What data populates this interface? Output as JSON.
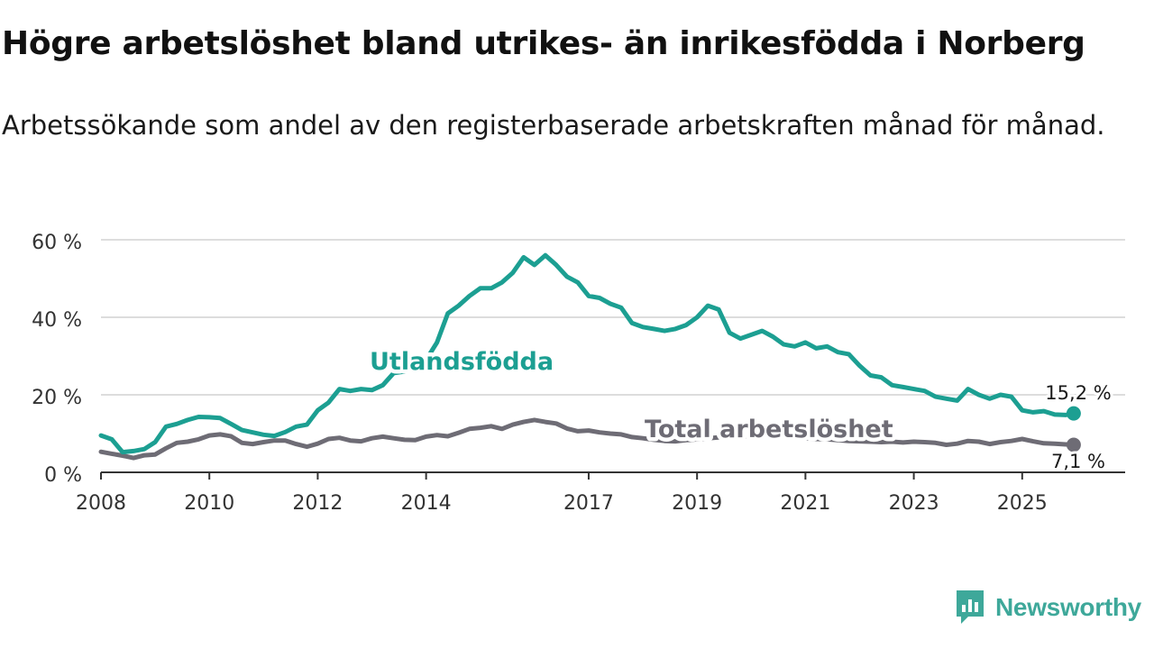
{
  "header": {
    "title": "Högre arbetslöshet bland utrikes- än inrikesfödda i Norberg",
    "subtitle": "Arbetssökande som andel av den registerbaserade arbetskraften månad för månad."
  },
  "brand": {
    "name": "Newsworthy",
    "icon": "newsworthy-logo-icon",
    "color": "#3ea89a"
  },
  "chart_data": {
    "type": "line",
    "title": "Högre arbetslöshet bland utrikes- än inrikesfödda i Norberg",
    "subtitle": "Arbetssökande som andel av den registerbaserade arbetskraften månad för månad.",
    "xlabel": "",
    "ylabel": "",
    "ylim": [
      0,
      60
    ],
    "xlim": [
      2008,
      2026.9
    ],
    "grid": true,
    "y_ticks": [
      {
        "value": 0,
        "label": "0 %"
      },
      {
        "value": 20,
        "label": "20 %"
      },
      {
        "value": 40,
        "label": "40 %"
      },
      {
        "value": 60,
        "label": "60 %"
      }
    ],
    "x_ticks": [
      {
        "value": 2008,
        "label": "2008"
      },
      {
        "value": 2010,
        "label": "2010"
      },
      {
        "value": 2012,
        "label": "2012"
      },
      {
        "value": 2014,
        "label": "2014"
      },
      {
        "value": 2017,
        "label": "2017"
      },
      {
        "value": 2019,
        "label": "2019"
      },
      {
        "value": 2021,
        "label": "2021"
      },
      {
        "value": 2023,
        "label": "2023"
      },
      {
        "value": 2025,
        "label": "2025"
      }
    ],
    "series": [
      {
        "name": "Total arbetslöshet",
        "label": "Total arbetslöshet",
        "color": "#6e6c75",
        "end_label": "7,1 %",
        "points": [
          [
            2008.0,
            5.3
          ],
          [
            2008.2,
            4.8
          ],
          [
            2008.4,
            4.3
          ],
          [
            2008.6,
            3.7
          ],
          [
            2008.8,
            4.4
          ],
          [
            2009.0,
            4.6
          ],
          [
            2009.2,
            6.2
          ],
          [
            2009.4,
            7.6
          ],
          [
            2009.6,
            7.9
          ],
          [
            2009.8,
            8.5
          ],
          [
            2010.0,
            9.5
          ],
          [
            2010.2,
            9.8
          ],
          [
            2010.4,
            9.3
          ],
          [
            2010.6,
            7.6
          ],
          [
            2010.8,
            7.3
          ],
          [
            2011.0,
            7.8
          ],
          [
            2011.2,
            8.2
          ],
          [
            2011.4,
            8.2
          ],
          [
            2011.6,
            7.3
          ],
          [
            2011.8,
            6.6
          ],
          [
            2012.0,
            7.4
          ],
          [
            2012.2,
            8.6
          ],
          [
            2012.4,
            8.9
          ],
          [
            2012.6,
            8.2
          ],
          [
            2012.8,
            8.0
          ],
          [
            2013.0,
            8.8
          ],
          [
            2013.2,
            9.2
          ],
          [
            2013.4,
            8.8
          ],
          [
            2013.6,
            8.4
          ],
          [
            2013.8,
            8.3
          ],
          [
            2014.0,
            9.2
          ],
          [
            2014.2,
            9.6
          ],
          [
            2014.4,
            9.3
          ],
          [
            2014.6,
            10.2
          ],
          [
            2014.8,
            11.2
          ],
          [
            2015.0,
            11.5
          ],
          [
            2015.2,
            11.9
          ],
          [
            2015.4,
            11.2
          ],
          [
            2015.6,
            12.3
          ],
          [
            2015.8,
            13.0
          ],
          [
            2016.0,
            13.5
          ],
          [
            2016.2,
            13.0
          ],
          [
            2016.4,
            12.6
          ],
          [
            2016.6,
            11.3
          ],
          [
            2016.8,
            10.6
          ],
          [
            2017.0,
            10.8
          ],
          [
            2017.2,
            10.3
          ],
          [
            2017.4,
            10.0
          ],
          [
            2017.6,
            9.8
          ],
          [
            2017.8,
            9.1
          ],
          [
            2018.0,
            8.8
          ],
          [
            2018.2,
            8.4
          ],
          [
            2018.4,
            8.1
          ],
          [
            2018.6,
            8.0
          ],
          [
            2018.8,
            8.3
          ],
          [
            2019.0,
            8.5
          ],
          [
            2019.2,
            8.8
          ],
          [
            2019.4,
            9.0
          ],
          [
            2019.6,
            9.1
          ],
          [
            2019.8,
            9.0
          ],
          [
            2020.0,
            9.5
          ],
          [
            2020.2,
            9.8
          ],
          [
            2020.4,
            9.6
          ],
          [
            2020.6,
            9.3
          ],
          [
            2020.8,
            9.0
          ],
          [
            2021.0,
            8.8
          ],
          [
            2021.2,
            8.6
          ],
          [
            2021.4,
            8.5
          ],
          [
            2021.6,
            8.3
          ],
          [
            2021.8,
            8.1
          ],
          [
            2022.0,
            8.0
          ],
          [
            2022.2,
            7.9
          ],
          [
            2022.4,
            7.8
          ],
          [
            2022.6,
            7.9
          ],
          [
            2022.8,
            7.7
          ],
          [
            2023.0,
            7.9
          ],
          [
            2023.2,
            7.8
          ],
          [
            2023.4,
            7.6
          ],
          [
            2023.6,
            7.1
          ],
          [
            2023.8,
            7.4
          ],
          [
            2024.0,
            8.1
          ],
          [
            2024.2,
            7.9
          ],
          [
            2024.4,
            7.3
          ],
          [
            2024.6,
            7.8
          ],
          [
            2024.8,
            8.1
          ],
          [
            2025.0,
            8.6
          ],
          [
            2025.2,
            8.0
          ],
          [
            2025.4,
            7.5
          ],
          [
            2025.6,
            7.4
          ],
          [
            2025.8,
            7.2
          ],
          [
            2025.95,
            7.1
          ]
        ]
      },
      {
        "name": "Utlandsfödda",
        "label": "Utlandsfödda",
        "color": "#1c9f92",
        "end_label": "15,2 %",
        "points": [
          [
            2008.0,
            9.5
          ],
          [
            2008.2,
            8.5
          ],
          [
            2008.4,
            5.2
          ],
          [
            2008.6,
            5.5
          ],
          [
            2008.8,
            6.0
          ],
          [
            2009.0,
            7.8
          ],
          [
            2009.2,
            11.8
          ],
          [
            2009.4,
            12.5
          ],
          [
            2009.6,
            13.5
          ],
          [
            2009.8,
            14.3
          ],
          [
            2010.0,
            14.2
          ],
          [
            2010.2,
            14.0
          ],
          [
            2010.4,
            12.5
          ],
          [
            2010.6,
            10.9
          ],
          [
            2010.8,
            10.3
          ],
          [
            2011.0,
            9.7
          ],
          [
            2011.2,
            9.4
          ],
          [
            2011.4,
            10.4
          ],
          [
            2011.6,
            11.8
          ],
          [
            2011.8,
            12.3
          ],
          [
            2012.0,
            16.0
          ],
          [
            2012.2,
            18.0
          ],
          [
            2012.4,
            21.5
          ],
          [
            2012.6,
            21.0
          ],
          [
            2012.8,
            21.5
          ],
          [
            2013.0,
            21.2
          ],
          [
            2013.2,
            22.5
          ],
          [
            2013.4,
            25.6
          ],
          [
            2013.6,
            26.0
          ],
          [
            2013.8,
            27.5
          ],
          [
            2014.0,
            29.0
          ],
          [
            2014.2,
            33.5
          ],
          [
            2014.4,
            41.0
          ],
          [
            2014.6,
            43.0
          ],
          [
            2014.8,
            45.5
          ],
          [
            2015.0,
            47.5
          ],
          [
            2015.2,
            47.5
          ],
          [
            2015.4,
            49.0
          ],
          [
            2015.6,
            51.5
          ],
          [
            2015.8,
            55.5
          ],
          [
            2016.0,
            53.5
          ],
          [
            2016.2,
            56.0
          ],
          [
            2016.4,
            53.5
          ],
          [
            2016.6,
            50.5
          ],
          [
            2016.8,
            49.0
          ],
          [
            2017.0,
            45.5
          ],
          [
            2017.2,
            45.0
          ],
          [
            2017.4,
            43.5
          ],
          [
            2017.6,
            42.5
          ],
          [
            2017.8,
            38.5
          ],
          [
            2018.0,
            37.5
          ],
          [
            2018.2,
            37.0
          ],
          [
            2018.4,
            36.5
          ],
          [
            2018.6,
            37.0
          ],
          [
            2018.8,
            38.0
          ],
          [
            2019.0,
            40.0
          ],
          [
            2019.2,
            43.0
          ],
          [
            2019.4,
            42.0
          ],
          [
            2019.6,
            36.0
          ],
          [
            2019.8,
            34.5
          ],
          [
            2020.0,
            35.5
          ],
          [
            2020.2,
            36.5
          ],
          [
            2020.4,
            35.0
          ],
          [
            2020.6,
            33.0
          ],
          [
            2020.8,
            32.5
          ],
          [
            2021.0,
            33.5
          ],
          [
            2021.2,
            32.0
          ],
          [
            2021.4,
            32.5
          ],
          [
            2021.6,
            31.0
          ],
          [
            2021.8,
            30.5
          ],
          [
            2022.0,
            27.5
          ],
          [
            2022.2,
            25.0
          ],
          [
            2022.4,
            24.5
          ],
          [
            2022.6,
            22.5
          ],
          [
            2022.8,
            22.0
          ],
          [
            2023.0,
            21.5
          ],
          [
            2023.2,
            21.0
          ],
          [
            2023.4,
            19.5
          ],
          [
            2023.6,
            19.0
          ],
          [
            2023.8,
            18.5
          ],
          [
            2024.0,
            21.5
          ],
          [
            2024.2,
            20.0
          ],
          [
            2024.4,
            19.0
          ],
          [
            2024.6,
            20.0
          ],
          [
            2024.8,
            19.5
          ],
          [
            2025.0,
            16.0
          ],
          [
            2025.2,
            15.5
          ],
          [
            2025.4,
            15.8
          ],
          [
            2025.6,
            14.9
          ],
          [
            2025.8,
            14.8
          ],
          [
            2025.95,
            15.2
          ]
        ]
      }
    ]
  }
}
